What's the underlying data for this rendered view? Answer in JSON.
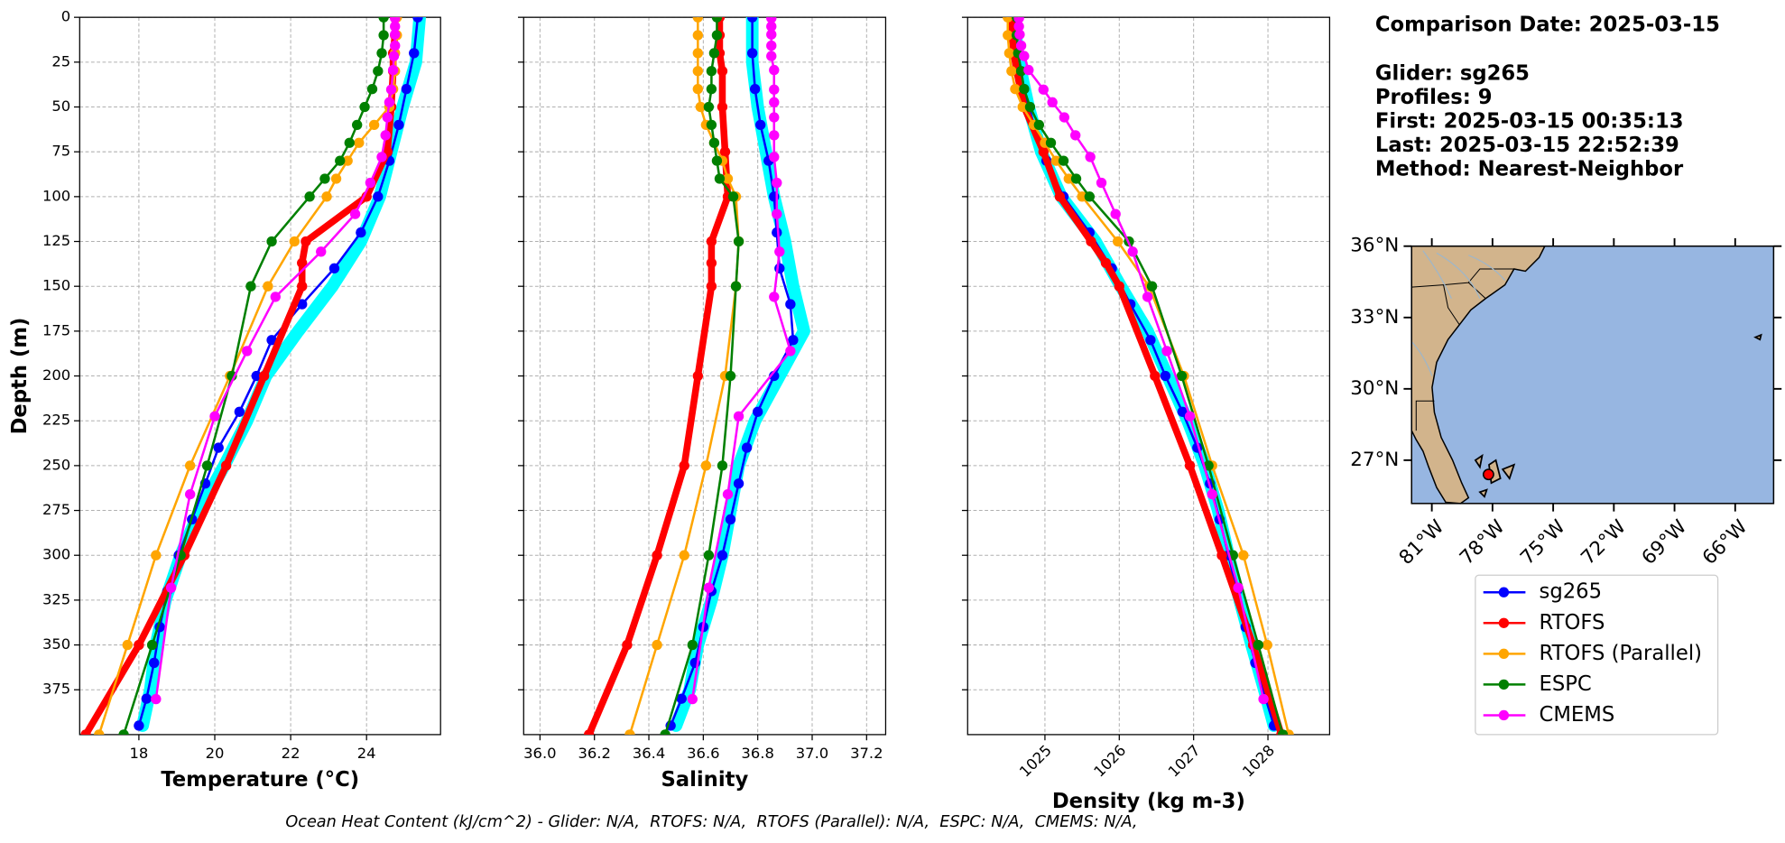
{
  "info": [
    "Comparison Date: 2025-03-15",
    "Glider: sg265",
    "Profiles: 9",
    "First: 2025-03-15 00:35:13",
    "Last: 2025-03-15 22:52:39",
    "Method: Nearest-Neighbor"
  ],
  "note": "Ocean Heat Content (kJ/cm^2) - Glider: N/A,  RTOFS: N/A,  RTOFS (Parallel): N/A,  ESPC: N/A,  CMEMS: N/A,",
  "chart_data": [
    {
      "type": "line",
      "xlabel": "Temperature (°C)",
      "ylabel": "Depth (m)",
      "grid": true,
      "xlim": [
        16.44,
        25.95
      ],
      "xticks": [
        18,
        20,
        22,
        24
      ],
      "ylim": [
        400,
        0
      ],
      "yticks": [
        0,
        25,
        50,
        75,
        100,
        125,
        150,
        175,
        200,
        225,
        250,
        275,
        300,
        325,
        350,
        375
      ],
      "series": [
        {
          "color": "#00ffff",
          "linewidth": 11,
          "marker": false,
          "y": [
            0,
            25,
            50,
            75,
            100,
            125,
            150,
            175,
            200,
            225,
            250,
            275,
            300,
            325,
            350,
            375,
            395
          ],
          "x": [
            25.4,
            25.3,
            24.95,
            24.65,
            24.35,
            23.85,
            23.1,
            22.2,
            21.35,
            20.85,
            20.25,
            19.6,
            19.1,
            18.7,
            18.45,
            18.3,
            18.1
          ]
        },
        {
          "name": "sg265",
          "color": "#0000ff",
          "linewidth": 2,
          "y": [
            0,
            20,
            40,
            60,
            80,
            100,
            120,
            140,
            160,
            180,
            200,
            220,
            240,
            260,
            280,
            300,
            320,
            340,
            360,
            380,
            395
          ],
          "x": [
            25.35,
            25.25,
            25.05,
            24.85,
            24.6,
            24.3,
            23.85,
            23.15,
            22.3,
            21.5,
            21.1,
            20.65,
            20.1,
            19.75,
            19.4,
            19.05,
            18.75,
            18.55,
            18.4,
            18.2,
            18.0
          ]
        },
        {
          "name": "RTOFS",
          "color": "#ff0000",
          "linewidth": 6,
          "y": [
            0,
            10,
            20,
            30,
            50,
            75,
            100,
            125,
            137,
            150,
            200,
            250,
            300,
            350,
            400
          ],
          "x": [
            24.75,
            24.75,
            24.7,
            24.7,
            24.65,
            24.55,
            24.0,
            22.4,
            22.3,
            22.3,
            21.3,
            20.3,
            19.2,
            18.0,
            16.6
          ]
        },
        {
          "name": "RTOFS (Parallel)",
          "color": "#ffa500",
          "linewidth": 2,
          "y": [
            0,
            10,
            20,
            30,
            40,
            50,
            60,
            70,
            80,
            90,
            100,
            125,
            150,
            200,
            250,
            300,
            350,
            400
          ],
          "x": [
            24.8,
            24.8,
            24.75,
            24.75,
            24.7,
            24.6,
            24.2,
            23.8,
            23.5,
            23.2,
            22.95,
            22.1,
            21.4,
            20.4,
            19.35,
            18.45,
            17.7,
            16.95
          ]
        },
        {
          "name": "ESPC",
          "color": "#008000",
          "linewidth": 2,
          "y": [
            0,
            10,
            20,
            30,
            40,
            50,
            60,
            70,
            80,
            90,
            100,
            125,
            150,
            200,
            250,
            300,
            350,
            400
          ],
          "x": [
            24.45,
            24.45,
            24.4,
            24.3,
            24.15,
            23.95,
            23.75,
            23.55,
            23.3,
            22.9,
            22.5,
            21.5,
            20.95,
            20.45,
            19.8,
            19.1,
            18.35,
            17.6
          ]
        },
        {
          "name": "CMEMS",
          "color": "#ff00ff",
          "linewidth": 2,
          "y": [
            0.5,
            5.1,
            9.6,
            15.8,
            21.6,
            29.4,
            40.3,
            47.4,
            55.8,
            65.8,
            77.9,
            92.3,
            109.7,
            130.7,
            155.9,
            186.1,
            222.5,
            266.0,
            318.1,
            380.2
          ],
          "x": [
            24.75,
            24.75,
            24.75,
            24.75,
            24.72,
            24.7,
            24.65,
            24.6,
            24.55,
            24.5,
            24.4,
            24.1,
            23.7,
            22.8,
            21.6,
            20.85,
            20.0,
            19.35,
            18.85,
            18.45
          ]
        }
      ]
    },
    {
      "type": "line",
      "xlabel": "Salinity",
      "grid": true,
      "ytick_labels": false,
      "xlim": [
        35.94,
        37.27
      ],
      "xticks": [
        {
          "value": 36,
          "label": "36.0"
        },
        36.2,
        36.4,
        36.6,
        36.8,
        {
          "value": 37,
          "label": "37.0"
        },
        37.2
      ],
      "ylim": [
        400,
        0
      ],
      "yticks": [
        0,
        25,
        50,
        75,
        100,
        125,
        150,
        175,
        200,
        225,
        250,
        275,
        300,
        325,
        350,
        375
      ],
      "series": [
        {
          "color": "#00ffff",
          "linewidth": 11,
          "marker": false,
          "y": [
            0,
            25,
            50,
            75,
            100,
            125,
            150,
            175,
            200,
            225,
            250,
            275,
            300,
            325,
            350,
            375,
            395
          ],
          "x": [
            36.78,
            36.78,
            36.8,
            36.83,
            36.86,
            36.9,
            36.93,
            36.97,
            36.88,
            36.79,
            36.73,
            36.7,
            36.67,
            36.63,
            36.58,
            36.55,
            36.5
          ]
        },
        {
          "color": "#0000ff",
          "linewidth": 2,
          "y": [
            0,
            20,
            40,
            60,
            80,
            100,
            120,
            140,
            160,
            180,
            200,
            220,
            240,
            260,
            280,
            300,
            320,
            340,
            360,
            380,
            395
          ],
          "x": [
            36.78,
            36.78,
            36.79,
            36.81,
            36.84,
            36.86,
            36.87,
            36.88,
            36.92,
            36.93,
            36.86,
            36.8,
            36.76,
            36.73,
            36.7,
            36.67,
            36.63,
            36.6,
            36.57,
            36.52,
            36.48
          ]
        },
        {
          "color": "#ff0000",
          "linewidth": 6,
          "y": [
            0,
            10,
            20,
            30,
            50,
            75,
            100,
            125,
            137,
            150,
            200,
            250,
            300,
            350,
            400
          ],
          "x": [
            36.66,
            36.66,
            36.66,
            36.67,
            36.67,
            36.68,
            36.69,
            36.63,
            36.63,
            36.63,
            36.58,
            36.53,
            36.43,
            36.32,
            36.18
          ]
        },
        {
          "color": "#ffa500",
          "linewidth": 2,
          "y": [
            0,
            10,
            20,
            30,
            40,
            50,
            60,
            70,
            80,
            90,
            100,
            125,
            150,
            200,
            250,
            300,
            350,
            400
          ],
          "x": [
            36.58,
            36.58,
            36.58,
            36.58,
            36.58,
            36.59,
            36.61,
            36.64,
            36.67,
            36.69,
            36.72,
            36.73,
            36.72,
            36.68,
            36.61,
            36.53,
            36.43,
            36.33
          ]
        },
        {
          "color": "#008000",
          "linewidth": 2,
          "y": [
            0,
            10,
            20,
            30,
            40,
            50,
            60,
            70,
            80,
            90,
            100,
            125,
            150,
            200,
            250,
            300,
            350,
            400
          ],
          "x": [
            36.65,
            36.65,
            36.64,
            36.63,
            36.63,
            36.62,
            36.63,
            36.64,
            36.65,
            36.66,
            36.71,
            36.73,
            36.72,
            36.7,
            36.67,
            36.62,
            36.56,
            36.46
          ]
        },
        {
          "color": "#ff00ff",
          "linewidth": 2,
          "y": [
            0.5,
            5.1,
            9.6,
            15.8,
            21.6,
            29.4,
            40.3,
            47.4,
            55.8,
            65.8,
            77.9,
            92.3,
            109.7,
            130.7,
            155.9,
            186.1,
            222.5,
            266.0,
            318.1,
            380.2
          ],
          "x": [
            36.85,
            36.85,
            36.85,
            36.85,
            36.85,
            36.86,
            36.86,
            36.86,
            36.86,
            36.86,
            36.86,
            36.87,
            36.87,
            36.88,
            36.86,
            36.92,
            36.73,
            36.69,
            36.62,
            36.56
          ]
        }
      ]
    },
    {
      "type": "line",
      "xlabel": "Density (kg m-3)",
      "grid": true,
      "ytick_labels": false,
      "xtick_rotation": 45,
      "xlim": [
        1023.96,
        1028.83
      ],
      "xticks": [
        1025,
        1026,
        1027,
        1028
      ],
      "ylim": [
        400,
        0
      ],
      "yticks": [
        0,
        25,
        50,
        75,
        100,
        125,
        150,
        175,
        200,
        225,
        250,
        275,
        300,
        325,
        350,
        375
      ],
      "series": [
        {
          "color": "#00ffff",
          "linewidth": 11,
          "marker": false,
          "y": [
            0,
            25,
            50,
            75,
            100,
            125,
            150,
            175,
            200,
            225,
            250,
            275,
            300,
            325,
            350,
            375,
            395
          ],
          "x": [
            1024.58,
            1024.65,
            1024.78,
            1024.95,
            1025.22,
            1025.68,
            1026.02,
            1026.38,
            1026.65,
            1026.92,
            1027.15,
            1027.33,
            1027.47,
            1027.62,
            1027.78,
            1027.95,
            1028.08
          ]
        },
        {
          "color": "#0000ff",
          "linewidth": 2,
          "y": [
            0,
            20,
            40,
            60,
            80,
            100,
            120,
            140,
            160,
            180,
            200,
            220,
            240,
            260,
            280,
            300,
            320,
            340,
            360,
            380,
            395
          ],
          "x": [
            1024.6,
            1024.64,
            1024.72,
            1024.85,
            1025.02,
            1025.25,
            1025.6,
            1025.9,
            1026.15,
            1026.42,
            1026.62,
            1026.85,
            1027.05,
            1027.22,
            1027.35,
            1027.47,
            1027.58,
            1027.7,
            1027.83,
            1027.97,
            1028.08
          ]
        },
        {
          "color": "#ff0000",
          "linewidth": 6,
          "y": [
            0,
            10,
            20,
            30,
            50,
            75,
            100,
            125,
            137,
            150,
            200,
            250,
            300,
            350,
            400
          ],
          "x": [
            1024.55,
            1024.56,
            1024.58,
            1024.62,
            1024.72,
            1024.98,
            1025.2,
            1025.62,
            1025.82,
            1026.0,
            1026.48,
            1026.95,
            1027.38,
            1027.8,
            1028.18
          ]
        },
        {
          "color": "#ffa500",
          "linewidth": 2,
          "y": [
            0,
            10,
            20,
            30,
            40,
            50,
            60,
            70,
            80,
            90,
            100,
            125,
            150,
            200,
            250,
            300,
            350,
            400
          ],
          "x": [
            1024.5,
            1024.5,
            1024.52,
            1024.55,
            1024.6,
            1024.7,
            1024.85,
            1025.0,
            1025.15,
            1025.32,
            1025.5,
            1025.98,
            1026.4,
            1026.87,
            1027.25,
            1027.67,
            1027.99,
            1028.28
          ]
        },
        {
          "color": "#008000",
          "linewidth": 2,
          "y": [
            0,
            10,
            20,
            30,
            40,
            50,
            60,
            70,
            80,
            90,
            100,
            125,
            150,
            200,
            250,
            300,
            350,
            400
          ],
          "x": [
            1024.62,
            1024.62,
            1024.64,
            1024.68,
            1024.72,
            1024.8,
            1024.92,
            1025.08,
            1025.25,
            1025.42,
            1025.6,
            1026.13,
            1026.44,
            1026.84,
            1027.2,
            1027.53,
            1027.87,
            1028.2
          ]
        },
        {
          "color": "#ff00ff",
          "linewidth": 2,
          "y": [
            0.5,
            5.1,
            9.6,
            15.8,
            21.6,
            29.4,
            40.3,
            47.4,
            55.8,
            65.8,
            77.9,
            92.3,
            109.7,
            130.7,
            155.9,
            186.1,
            222.5,
            266.0,
            318.1,
            380.2
          ],
          "x": [
            1024.65,
            1024.65,
            1024.66,
            1024.68,
            1024.72,
            1024.78,
            1024.98,
            1025.1,
            1025.26,
            1025.41,
            1025.61,
            1025.76,
            1025.95,
            1026.18,
            1026.38,
            1026.64,
            1026.95,
            1027.25,
            1027.6,
            1027.94
          ]
        }
      ]
    },
    {
      "type": "map",
      "xlim": [
        -82.0,
        -64.1
      ],
      "xticks": [
        {
          "value": -81,
          "label": "81°W"
        },
        {
          "value": -78,
          "label": "78°W"
        },
        {
          "value": -75,
          "label": "75°W"
        },
        {
          "value": -72,
          "label": "72°W"
        },
        {
          "value": -69,
          "label": "69°W"
        },
        {
          "value": -66,
          "label": "66°W"
        }
      ],
      "ylim": [
        25.18,
        36.0
      ],
      "yticks": [
        {
          "value": 36,
          "label": "36°N"
        },
        {
          "value": 33,
          "label": "33°N"
        },
        {
          "value": 30,
          "label": "30°N"
        },
        {
          "value": 27,
          "label": "27°N"
        }
      ],
      "points": {
        "color": "#ff0000",
        "x": [
          -78.2
        ],
        "y": [
          26.4
        ]
      }
    }
  ]
}
